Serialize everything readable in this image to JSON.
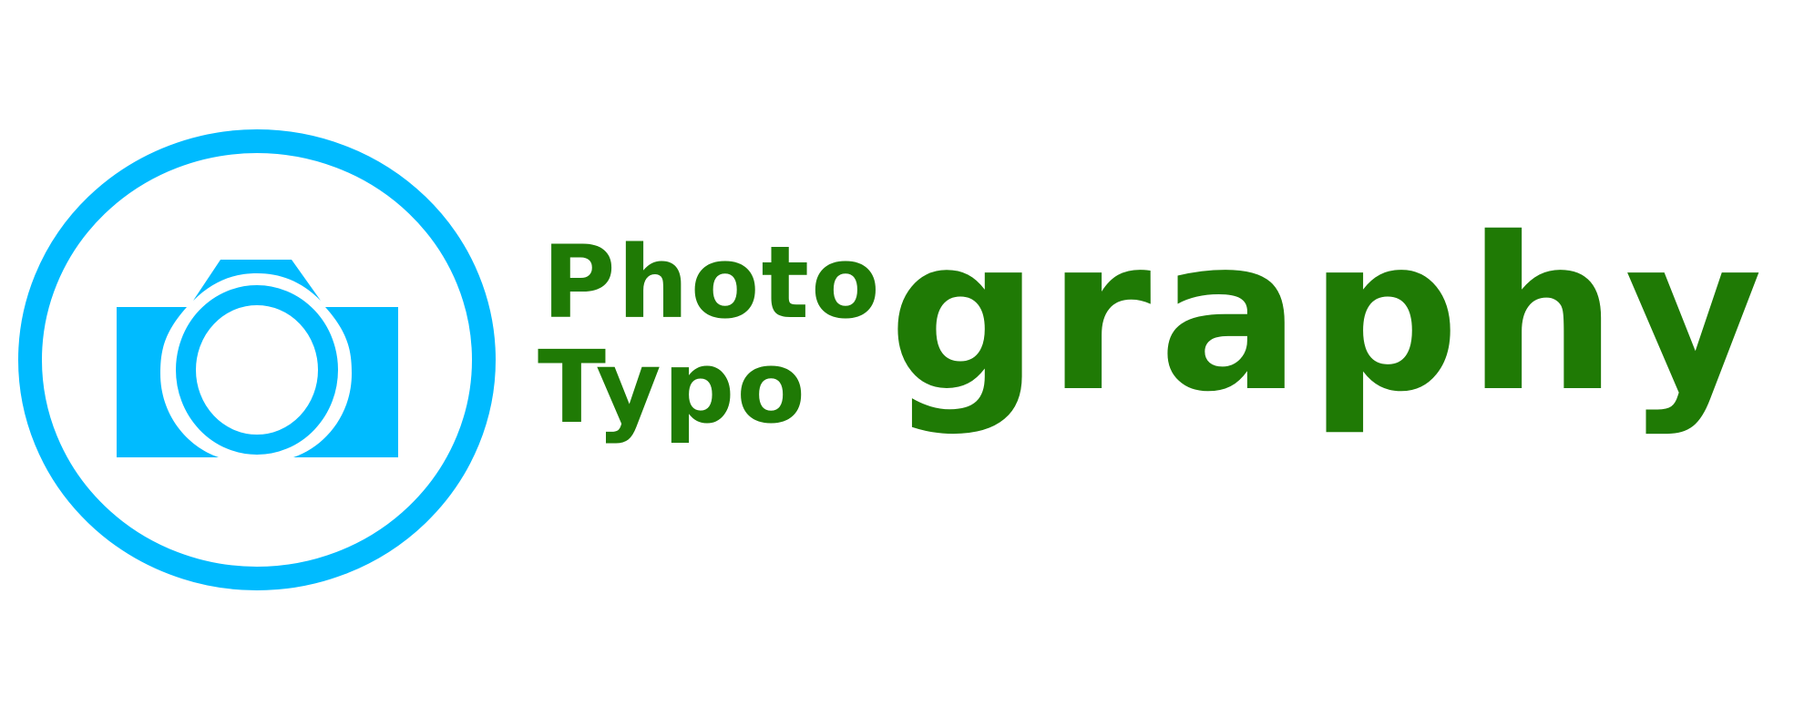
{
  "logo": {
    "emblem_icon": "camera-icon",
    "word_top": "Photo",
    "word_bottom": "Typo",
    "word_main": "graphy",
    "colors": {
      "emblem": "#00bbff",
      "text": "#1f7a05",
      "background": "#ffffff"
    }
  }
}
